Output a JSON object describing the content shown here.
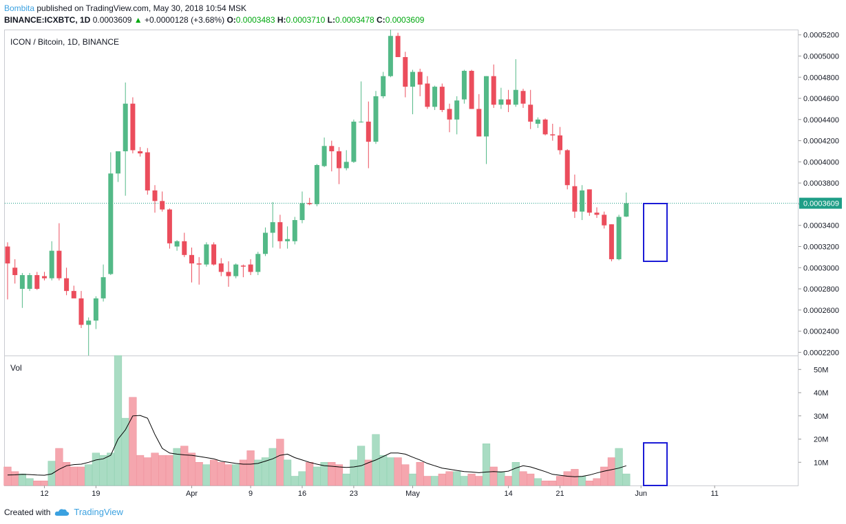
{
  "header": {
    "author": "Bombita",
    "published_text": "published on TradingView.com, May 30, 2018 10:54 MSK",
    "symbol": "BINANCE:ICXBTC, 1D",
    "last_price": "0.0003609",
    "change_arrow": "▲",
    "change": "+0.0000128 (+3.68%)",
    "o_label": "O:",
    "o_value": "0.0003483",
    "h_label": "H:",
    "h_value": "0.0003710",
    "l_label": "L:",
    "l_value": "0.0003478",
    "c_label": "C:",
    "c_value": "0.0003609"
  },
  "footer": {
    "created_with": "Created with",
    "brand": "TradingView"
  },
  "colors": {
    "up": "#53b987",
    "down": "#eb4d5c",
    "up_vol": "#a9dcc3",
    "down_vol": "#f5a6ae",
    "box": "#1a1ad6",
    "price_line": "#1e9e87",
    "grid": "#e0e3eb"
  },
  "chart_data": [
    {
      "type": "candlestick",
      "title": "ICON / Bitcoin, 1D, BINANCE",
      "ylim": [
        0.000217,
        0.000525
      ],
      "y_ticks": [
        "0.0002200",
        "0.0002400",
        "0.0002600",
        "0.0002800",
        "0.0003000",
        "0.0003200",
        "0.0003400",
        "0.0003600",
        "0.0003800",
        "0.0004000",
        "0.0004200",
        "0.0004400",
        "0.0004600",
        "0.0004800",
        "0.0005000",
        "0.0005200"
      ],
      "x_ticks": [
        {
          "label": "12",
          "day": 5
        },
        {
          "label": "19",
          "day": 12
        },
        {
          "label": "Apr",
          "day": 25
        },
        {
          "label": "9",
          "day": 33
        },
        {
          "label": "16",
          "day": 40
        },
        {
          "label": "23",
          "day": 47
        },
        {
          "label": "May",
          "day": 55
        },
        {
          "label": "14",
          "day": 68
        },
        {
          "label": "21",
          "day": 75
        },
        {
          "label": "Jun",
          "day": 86
        },
        {
          "label": "11",
          "day": 96
        }
      ],
      "current_price_label": "0.0003609",
      "current_price": 0.0003609,
      "candles": [
        {
          "o": 0.00032,
          "h": 0.000324,
          "l": 0.00027,
          "c": 0.000304
        },
        {
          "o": 0.0003,
          "h": 0.000308,
          "l": 0.000285,
          "c": 0.000293
        },
        {
          "o": 0.00028,
          "h": 0.000295,
          "l": 0.000262,
          "c": 0.000293
        },
        {
          "o": 0.00028,
          "h": 0.000295,
          "l": 0.000278,
          "c": 0.000293
        },
        {
          "o": 0.000293,
          "h": 0.000296,
          "l": 0.000279,
          "c": 0.00028
        },
        {
          "o": 0.000292,
          "h": 0.000296,
          "l": 0.000288,
          "c": 0.00029
        },
        {
          "o": 0.00029,
          "h": 0.000325,
          "l": 0.000288,
          "c": 0.000316
        },
        {
          "o": 0.000316,
          "h": 0.000342,
          "l": 0.000288,
          "c": 0.00029
        },
        {
          "o": 0.00029,
          "h": 0.0003,
          "l": 0.000274,
          "c": 0.000278
        },
        {
          "o": 0.000278,
          "h": 0.000283,
          "l": 0.000272,
          "c": 0.000271
        },
        {
          "o": 0.000271,
          "h": 0.000278,
          "l": 0.000243,
          "c": 0.000246
        },
        {
          "o": 0.000246,
          "h": 0.000253,
          "l": 0.000217,
          "c": 0.00025
        },
        {
          "o": 0.00025,
          "h": 0.000273,
          "l": 0.000242,
          "c": 0.000271
        },
        {
          "o": 0.000271,
          "h": 0.000303,
          "l": 0.000268,
          "c": 0.000291
        },
        {
          "o": 0.000294,
          "h": 0.000409,
          "l": 0.000293,
          "c": 0.000389
        },
        {
          "o": 0.000389,
          "h": 0.00041,
          "l": 0.000381,
          "c": 0.00041
        },
        {
          "o": 0.00041,
          "h": 0.000475,
          "l": 0.000368,
          "c": 0.000455
        },
        {
          "o": 0.000455,
          "h": 0.000461,
          "l": 0.000408,
          "c": 0.000411
        },
        {
          "o": 0.00041,
          "h": 0.000414,
          "l": 0.000405,
          "c": 0.000408
        },
        {
          "o": 0.000409,
          "h": 0.000413,
          "l": 0.000369,
          "c": 0.000373
        },
        {
          "o": 0.000373,
          "h": 0.000378,
          "l": 0.000352,
          "c": 0.000363
        },
        {
          "o": 0.000363,
          "h": 0.000372,
          "l": 0.000353,
          "c": 0.000355
        },
        {
          "o": 0.000355,
          "h": 0.000356,
          "l": 0.000318,
          "c": 0.000323
        },
        {
          "o": 0.00032,
          "h": 0.000326,
          "l": 0.000316,
          "c": 0.000325
        },
        {
          "o": 0.000325,
          "h": 0.000333,
          "l": 0.00031,
          "c": 0.000312
        },
        {
          "o": 0.000312,
          "h": 0.000319,
          "l": 0.000286,
          "c": 0.000304
        },
        {
          "o": 0.000304,
          "h": 0.00031,
          "l": 0.000284,
          "c": 0.000303
        },
        {
          "o": 0.000303,
          "h": 0.000324,
          "l": 0.000301,
          "c": 0.000322
        },
        {
          "o": 0.000322,
          "h": 0.000324,
          "l": 0.000302,
          "c": 0.000303
        },
        {
          "o": 0.000304,
          "h": 0.000309,
          "l": 0.000292,
          "c": 0.000296
        },
        {
          "o": 0.000296,
          "h": 0.000306,
          "l": 0.000282,
          "c": 0.000292
        },
        {
          "o": 0.000292,
          "h": 0.000304,
          "l": 0.00029,
          "c": 0.000303
        },
        {
          "o": 0.000302,
          "h": 0.000303,
          "l": 0.000291,
          "c": 0.000301
        },
        {
          "o": 0.000303,
          "h": 0.000308,
          "l": 0.000293,
          "c": 0.000296
        },
        {
          "o": 0.000296,
          "h": 0.000315,
          "l": 0.000293,
          "c": 0.000313
        },
        {
          "o": 0.000313,
          "h": 0.000338,
          "l": 0.000311,
          "c": 0.000333
        },
        {
          "o": 0.000333,
          "h": 0.000362,
          "l": 0.000319,
          "c": 0.000343
        },
        {
          "o": 0.000343,
          "h": 0.00035,
          "l": 0.000318,
          "c": 0.000325
        },
        {
          "o": 0.000325,
          "h": 0.000339,
          "l": 0.000318,
          "c": 0.000327
        },
        {
          "o": 0.000325,
          "h": 0.000348,
          "l": 0.000322,
          "c": 0.000345
        },
        {
          "o": 0.000345,
          "h": 0.000372,
          "l": 0.000342,
          "c": 0.000361
        },
        {
          "o": 0.000361,
          "h": 0.000366,
          "l": 0.000359,
          "c": 0.00036
        },
        {
          "o": 0.00036,
          "h": 0.000398,
          "l": 0.000358,
          "c": 0.000397
        },
        {
          "o": 0.000396,
          "h": 0.000423,
          "l": 0.000395,
          "c": 0.000415
        },
        {
          "o": 0.000415,
          "h": 0.00042,
          "l": 0.000391,
          "c": 0.00041
        },
        {
          "o": 0.00041,
          "h": 0.000414,
          "l": 0.000379,
          "c": 0.000394
        },
        {
          "o": 0.000394,
          "h": 0.000411,
          "l": 0.000392,
          "c": 0.0004
        },
        {
          "o": 0.0004,
          "h": 0.00044,
          "l": 0.000399,
          "c": 0.000438
        },
        {
          "o": 0.000438,
          "h": 0.000476,
          "l": 0.000437,
          "c": 0.000438
        },
        {
          "o": 0.000438,
          "h": 0.000457,
          "l": 0.000394,
          "c": 0.000419
        },
        {
          "o": 0.000419,
          "h": 0.000467,
          "l": 0.000417,
          "c": 0.000462
        },
        {
          "o": 0.000462,
          "h": 0.000485,
          "l": 0.00046,
          "c": 0.000481
        },
        {
          "o": 0.000481,
          "h": 0.000525,
          "l": 0.00048,
          "c": 0.000519
        },
        {
          "o": 0.000519,
          "h": 0.000522,
          "l": 0.000499,
          "c": 0.000499
        },
        {
          "o": 0.000499,
          "h": 0.000504,
          "l": 0.000461,
          "c": 0.000471
        },
        {
          "o": 0.000471,
          "h": 0.000487,
          "l": 0.000445,
          "c": 0.000485
        },
        {
          "o": 0.000485,
          "h": 0.000488,
          "l": 0.000462,
          "c": 0.000473
        },
        {
          "o": 0.000474,
          "h": 0.000481,
          "l": 0.00045,
          "c": 0.000452
        },
        {
          "o": 0.000452,
          "h": 0.000472,
          "l": 0.000449,
          "c": 0.000471
        },
        {
          "o": 0.000471,
          "h": 0.000474,
          "l": 0.000447,
          "c": 0.000449
        },
        {
          "o": 0.00045,
          "h": 0.000455,
          "l": 0.000428,
          "c": 0.00044
        },
        {
          "o": 0.00044,
          "h": 0.000462,
          "l": 0.000426,
          "c": 0.000458
        },
        {
          "o": 0.000459,
          "h": 0.000487,
          "l": 0.000455,
          "c": 0.000486
        },
        {
          "o": 0.000486,
          "h": 0.000487,
          "l": 0.00045,
          "c": 0.00045
        },
        {
          "o": 0.00045,
          "h": 0.000464,
          "l": 0.000424,
          "c": 0.000424
        },
        {
          "o": 0.000424,
          "h": 0.000481,
          "l": 0.000398,
          "c": 0.000481
        },
        {
          "o": 0.000481,
          "h": 0.000492,
          "l": 0.000451,
          "c": 0.000454
        },
        {
          "o": 0.000454,
          "h": 0.00047,
          "l": 0.00045,
          "c": 0.000459
        },
        {
          "o": 0.000459,
          "h": 0.000468,
          "l": 0.000447,
          "c": 0.000454
        },
        {
          "o": 0.000454,
          "h": 0.000497,
          "l": 0.000452,
          "c": 0.000468
        },
        {
          "o": 0.000467,
          "h": 0.000469,
          "l": 0.000451,
          "c": 0.000455
        },
        {
          "o": 0.000454,
          "h": 0.000468,
          "l": 0.000431,
          "c": 0.000438
        },
        {
          "o": 0.000436,
          "h": 0.000442,
          "l": 0.000432,
          "c": 0.00044
        },
        {
          "o": 0.00044,
          "h": 0.000441,
          "l": 0.000425,
          "c": 0.000426
        },
        {
          "o": 0.000426,
          "h": 0.000436,
          "l": 0.00042,
          "c": 0.000425
        },
        {
          "o": 0.000425,
          "h": 0.000433,
          "l": 0.000407,
          "c": 0.000411
        },
        {
          "o": 0.000411,
          "h": 0.000412,
          "l": 0.000374,
          "c": 0.000378
        },
        {
          "o": 0.000377,
          "h": 0.000388,
          "l": 0.000347,
          "c": 0.000353
        },
        {
          "o": 0.000353,
          "h": 0.000378,
          "l": 0.000345,
          "c": 0.000373
        },
        {
          "o": 0.000374,
          "h": 0.000374,
          "l": 0.000349,
          "c": 0.000352
        },
        {
          "o": 0.000352,
          "h": 0.000357,
          "l": 0.000347,
          "c": 0.00035
        },
        {
          "o": 0.00035,
          "h": 0.000353,
          "l": 0.000337,
          "c": 0.00034
        },
        {
          "o": 0.000341,
          "h": 0.000341,
          "l": 0.000306,
          "c": 0.000308
        },
        {
          "o": 0.000308,
          "h": 0.00035,
          "l": 0.000307,
          "c": 0.000348
        },
        {
          "o": 0.0003483,
          "h": 0.000371,
          "l": 0.0003478,
          "c": 0.0003609
        }
      ]
    },
    {
      "type": "bar",
      "title": "Vol",
      "ylim": [
        0,
        56
      ],
      "y_ticks": [
        "10M",
        "20M",
        "30M",
        "40M",
        "50M"
      ],
      "volumes_M": [
        8,
        6,
        5,
        3,
        2,
        2,
        10.5,
        16,
        10,
        8,
        8,
        9,
        14,
        13,
        14,
        56,
        29,
        38,
        13,
        12,
        14,
        13,
        13,
        16,
        17,
        14,
        10,
        9,
        11,
        10,
        9,
        9,
        11,
        15,
        11,
        12,
        16,
        20,
        11,
        4,
        6,
        10,
        8,
        10,
        10,
        9,
        5,
        11,
        17,
        11,
        22,
        13,
        12,
        12,
        9,
        5,
        10,
        4,
        4,
        5,
        6,
        6,
        4,
        5,
        4,
        18,
        8,
        6,
        4,
        10,
        6,
        5,
        3,
        2,
        2,
        4,
        6,
        7,
        4,
        2,
        3,
        8,
        12,
        16,
        5
      ],
      "ma_M": [
        4.5,
        4.6,
        4.8,
        4.7,
        4.5,
        4.4,
        5,
        7,
        8.5,
        9,
        9.2,
        10,
        11,
        11.5,
        13,
        20,
        24,
        30,
        30.2,
        29,
        22,
        16,
        14,
        13.5,
        13.2,
        13,
        12.5,
        12,
        11.5,
        10.5,
        10,
        9.5,
        9.2,
        9.2,
        9.5,
        10.5,
        11.5,
        13,
        13.5,
        12,
        11,
        10,
        9.2,
        8.5,
        8.3,
        8,
        7.8,
        8,
        8.5,
        9.8,
        11,
        12.5,
        14,
        14,
        13.5,
        12.2,
        11,
        9.5,
        8.5,
        7.5,
        7,
        6.5,
        6,
        5.8,
        5.5,
        5.8,
        6,
        5.8,
        6.2,
        7.5,
        8.5,
        8,
        7,
        6,
        4.8,
        4.4,
        4,
        3.8,
        3.9,
        4.5,
        5.4,
        6.2,
        6.8,
        7.5,
        8.5
      ]
    }
  ]
}
